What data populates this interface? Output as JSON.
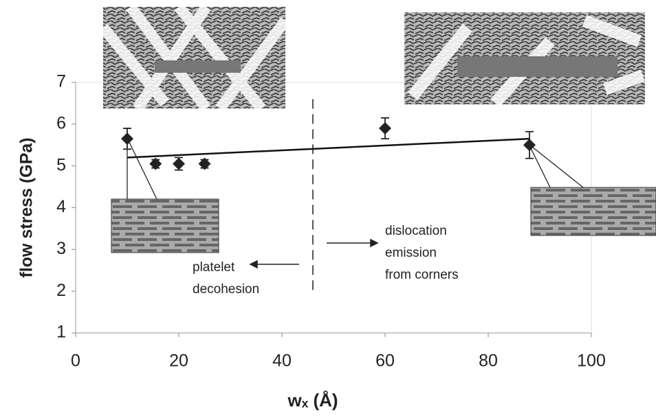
{
  "chart_data": {
    "type": "scatter",
    "x_label": "wₓ (Å)",
    "y_label": "flow stress (GPa)",
    "x": [
      10,
      15.5,
      20,
      25,
      60,
      88
    ],
    "values": [
      5.65,
      5.05,
      5.05,
      5.05,
      5.9,
      5.5
    ],
    "errors": [
      0.25,
      0.1,
      0.15,
      0.1,
      0.25,
      0.32
    ],
    "color": "#222222",
    "trend_line": {
      "x": [
        10,
        88
      ],
      "values": [
        5.2,
        5.65
      ]
    },
    "divider_x": 46,
    "xlim": [
      0,
      100
    ],
    "ylim": [
      1,
      7
    ],
    "xticks": [
      0,
      20,
      40,
      60,
      80,
      100
    ],
    "yticks": [
      1,
      2,
      3,
      4,
      5,
      6,
      7
    ],
    "annotations": [
      {
        "lines": [
          "platelet",
          "decohesion"
        ]
      },
      {
        "lines": [
          "dislocation",
          "emission",
          "from corners"
        ]
      }
    ]
  }
}
